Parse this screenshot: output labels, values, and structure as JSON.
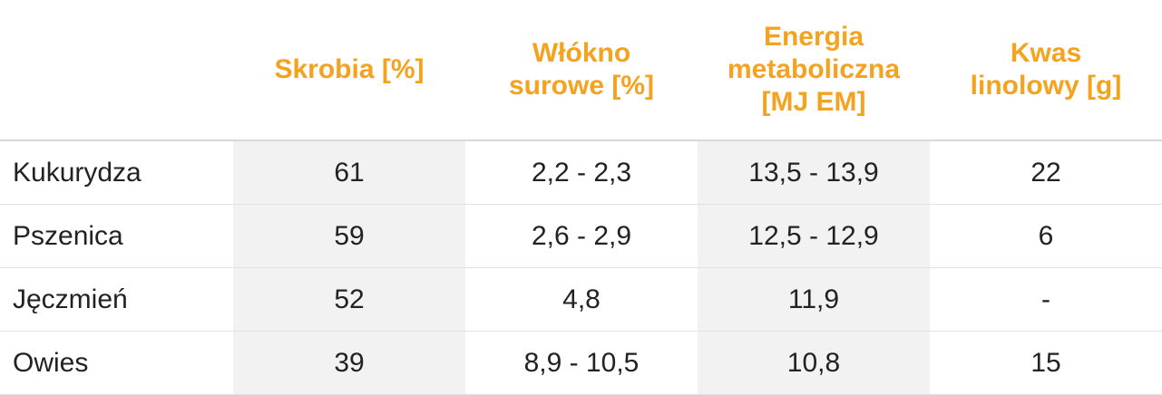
{
  "table": {
    "columns": [
      "Skrobia [%]",
      "Włókno surowe [%]",
      "Energia metaboliczna [MJ EM]",
      "Kwas linolowy [g]"
    ],
    "rows": [
      [
        "Kukurydza",
        "61",
        "2,2 - 2,3",
        "13,5 - 13,9",
        "22"
      ],
      [
        "Pszenica",
        "59",
        "2,6 - 2,9",
        "12,5 - 12,9",
        "6"
      ],
      [
        "Jęczmień",
        "52",
        "4,8",
        "11,9",
        "-"
      ],
      [
        "Owies",
        "39",
        "8,9 - 10,5",
        "10,8",
        "15"
      ]
    ]
  }
}
